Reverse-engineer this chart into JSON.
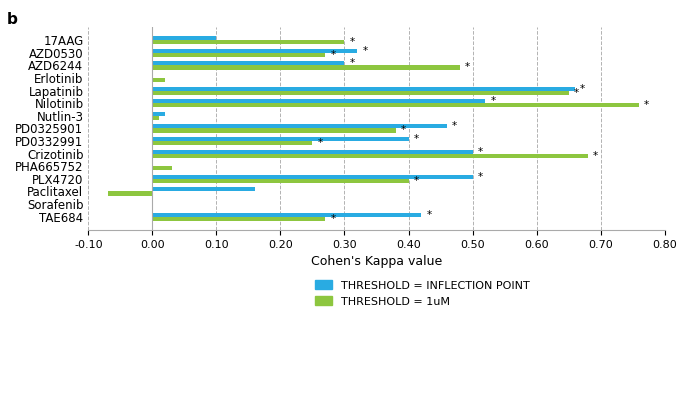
{
  "drugs": [
    "17AAG",
    "AZD0530",
    "AZD6244",
    "Erlotinib",
    "Lapatinib",
    "Nilotinib",
    "Nutlin-3",
    "PD0325901",
    "PD0332991",
    "Crizotinib",
    "PHA665752",
    "PLX4720",
    "Paclitaxel",
    "Sorafenib",
    "TAE684"
  ],
  "blue_values": [
    0.1,
    0.32,
    0.3,
    0.0,
    0.66,
    0.52,
    0.02,
    0.46,
    0.4,
    0.5,
    0.0,
    0.5,
    0.16,
    0.0,
    0.42
  ],
  "green_values": [
    0.3,
    0.27,
    0.48,
    0.02,
    0.65,
    0.76,
    0.01,
    0.38,
    0.25,
    0.68,
    0.03,
    0.4,
    -0.07,
    0.0,
    0.27
  ],
  "blue_star": [
    false,
    true,
    true,
    false,
    true,
    true,
    false,
    true,
    true,
    true,
    false,
    true,
    false,
    false,
    true
  ],
  "green_star": [
    true,
    true,
    true,
    false,
    true,
    true,
    false,
    true,
    true,
    true,
    false,
    true,
    false,
    false,
    true
  ],
  "blue_color": "#29ABE2",
  "green_color": "#8DC63F",
  "xlabel": "Cohen's Kappa value",
  "xlim": [
    -0.1,
    0.8
  ],
  "xticks": [
    -0.1,
    0.0,
    0.1,
    0.2,
    0.3,
    0.4,
    0.5,
    0.6,
    0.7,
    0.8
  ],
  "xtick_labels": [
    "-0.10",
    "0.00",
    "0.10",
    "0.20",
    "0.30",
    "0.40",
    "0.50",
    "0.60",
    "0.70",
    "0.80"
  ],
  "legend_blue": "THRESHOLD = INFLECTION POINT",
  "legend_green": "THRESHOLD = 1uM",
  "title_label": "b",
  "bar_height": 0.32
}
